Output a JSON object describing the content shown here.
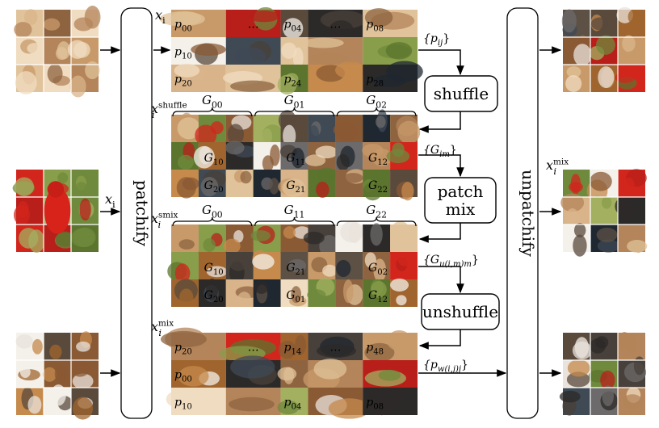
{
  "inputs": [
    {
      "label": "",
      "kind": "dog"
    },
    {
      "label": "x_i",
      "kind": "bird"
    },
    {
      "label": "",
      "kind": "puppy"
    }
  ],
  "outputs": [
    {
      "label": "",
      "kind": "mix1"
    },
    {
      "label": "x_i^mix",
      "kind": "mix2"
    },
    {
      "label": "",
      "kind": "mix3"
    }
  ],
  "patchify": {
    "label": "patchify"
  },
  "unpatchify": {
    "label": "unpatchify"
  },
  "ops": {
    "shuffle": "shuffle",
    "patch_mix_line1": "patch",
    "patch_mix_line2": "mix",
    "unshuffle": "unshuffle"
  },
  "edge_labels": {
    "pij": "{p_ij}",
    "Gim": "{G_im}",
    "Gu": "{G_u(i,m)m}",
    "pw": "{p_w(i,j)j}"
  },
  "rows": {
    "xi": {
      "name": "x_i",
      "cells": [
        [
          "p00",
          "…",
          "p04",
          "…",
          "p08"
        ],
        [
          "p10",
          "",
          "",
          "",
          ""
        ],
        [
          "p20",
          "",
          "p24",
          "",
          "p28"
        ]
      ]
    },
    "shuffle": {
      "name": "x_i^shuffle",
      "braces": [
        "G00",
        "G01",
        "G02"
      ],
      "groups": [
        [
          "",
          "",
          ""
        ],
        [
          "G10",
          "G11",
          "G12"
        ],
        [
          "G20",
          "G21",
          "G22"
        ]
      ]
    },
    "smix": {
      "name": "x_i^smix",
      "braces": [
        "G00",
        "G11",
        "G22"
      ],
      "groups": [
        [
          "",
          "",
          ""
        ],
        [
          "G10",
          "G21",
          "G02"
        ],
        [
          "G20",
          "G01",
          "G12"
        ]
      ]
    },
    "mix": {
      "name": "x_i^mix",
      "cells": [
        [
          "p20",
          "…",
          "p14",
          "…",
          "p48"
        ],
        [
          "p00",
          "",
          "",
          "",
          ""
        ],
        [
          "p10",
          "",
          "p04",
          "",
          "p08"
        ]
      ]
    }
  },
  "colors": {
    "red": "#e8262b",
    "green": "#2fa84f",
    "yellow": "#e6d21c"
  }
}
